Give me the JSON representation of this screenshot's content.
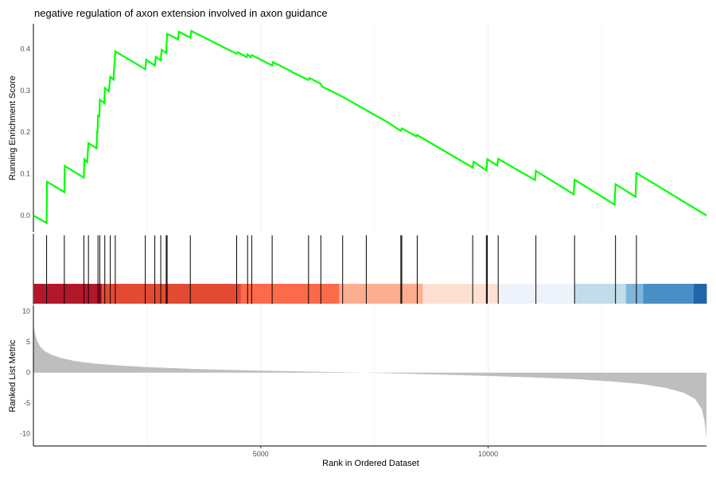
{
  "chart_data": [
    {
      "type": "line",
      "title": "negative regulation of axon extension involved in axon guidance",
      "ylabel": "Running Enrichment Score",
      "xlim": [
        0,
        14800
      ],
      "ylim": [
        -0.04,
        0.46
      ],
      "yticks": [
        "0.0",
        "0.1",
        "0.2",
        "0.3",
        "0.4"
      ],
      "ytick_values": [
        0.0,
        0.1,
        0.2,
        0.3,
        0.4
      ],
      "grid": true,
      "color": "#00ff00",
      "points": [
        [
          0,
          0.0
        ],
        [
          290,
          -0.018
        ],
        [
          300,
          0.081
        ],
        [
          680,
          0.056
        ],
        [
          690,
          0.119
        ],
        [
          1110,
          0.091
        ],
        [
          1120,
          0.135
        ],
        [
          1180,
          0.128
        ],
        [
          1210,
          0.174
        ],
        [
          1390,
          0.161
        ],
        [
          1400,
          0.203
        ],
        [
          1410,
          0.199
        ],
        [
          1420,
          0.24
        ],
        [
          1450,
          0.238
        ],
        [
          1460,
          0.278
        ],
        [
          1560,
          0.27
        ],
        [
          1570,
          0.306
        ],
        [
          1660,
          0.298
        ],
        [
          1690,
          0.333
        ],
        [
          1760,
          0.326
        ],
        [
          1800,
          0.394
        ],
        [
          2460,
          0.351
        ],
        [
          2480,
          0.374
        ],
        [
          2670,
          0.36
        ],
        [
          2690,
          0.381
        ],
        [
          2800,
          0.372
        ],
        [
          2820,
          0.398
        ],
        [
          2920,
          0.39
        ],
        [
          2940,
          0.436
        ],
        [
          3180,
          0.423
        ],
        [
          3200,
          0.441
        ],
        [
          3450,
          0.427
        ],
        [
          3470,
          0.443
        ],
        [
          4470,
          0.388
        ],
        [
          4490,
          0.392
        ],
        [
          4690,
          0.38
        ],
        [
          4710,
          0.387
        ],
        [
          4780,
          0.38
        ],
        [
          4800,
          0.385
        ],
        [
          5250,
          0.36
        ],
        [
          5270,
          0.368
        ],
        [
          5670,
          0.346
        ],
        [
          5690,
          0.344
        ],
        [
          6050,
          0.325
        ],
        [
          6070,
          0.33
        ],
        [
          6320,
          0.316
        ],
        [
          6340,
          0.31
        ],
        [
          6800,
          0.285
        ],
        [
          7800,
          0.223
        ],
        [
          8080,
          0.203
        ],
        [
          8100,
          0.209
        ],
        [
          8420,
          0.19
        ],
        [
          8440,
          0.193
        ],
        [
          9660,
          0.115
        ],
        [
          9680,
          0.129
        ],
        [
          9960,
          0.108
        ],
        [
          9980,
          0.135
        ],
        [
          10200,
          0.12
        ],
        [
          10220,
          0.136
        ],
        [
          11030,
          0.085
        ],
        [
          11050,
          0.107
        ],
        [
          11880,
          0.051
        ],
        [
          11900,
          0.086
        ],
        [
          12780,
          0.026
        ],
        [
          12800,
          0.075
        ],
        [
          13240,
          0.045
        ],
        [
          13260,
          0.102
        ],
        [
          14800,
          0.0
        ]
      ]
    },
    {
      "type": "heatmap",
      "hits": [
        290,
        680,
        1110,
        1210,
        1420,
        1460,
        1570,
        1690,
        1800,
        2460,
        2670,
        2800,
        2920,
        2940,
        3450,
        4470,
        4710,
        4800,
        5250,
        6050,
        6320,
        6800,
        7320,
        8080,
        8100,
        8440,
        9660,
        9960,
        9980,
        10220,
        11050,
        11900,
        12800,
        13260
      ],
      "color_bands": [
        {
          "from": 0,
          "to": 1500,
          "color": "#b2182b"
        },
        {
          "from": 1500,
          "to": 4560,
          "color": "#e34a33"
        },
        {
          "from": 4560,
          "to": 6720,
          "color": "#fb6a4a"
        },
        {
          "from": 6720,
          "to": 8560,
          "color": "#fcae91"
        },
        {
          "from": 8560,
          "to": 10200,
          "color": "#fee0d2"
        },
        {
          "from": 10200,
          "to": 11900,
          "color": "#eef3fb"
        },
        {
          "from": 11900,
          "to": 13030,
          "color": "#c3dcea"
        },
        {
          "from": 13030,
          "to": 13410,
          "color": "#7fb5dc"
        },
        {
          "from": 13410,
          "to": 14520,
          "color": "#4a8ec6"
        },
        {
          "from": 14520,
          "to": 14800,
          "color": "#2266a9"
        }
      ]
    },
    {
      "type": "area",
      "xlabel": "Rank in Ordered Dataset",
      "ylabel": "Ranked List Metric",
      "xticks": [
        "5000",
        "10000"
      ],
      "xtick_values": [
        5000,
        10000
      ],
      "yticks": [
        "10",
        "5",
        "0",
        "-5",
        "-10"
      ],
      "ytick_values": [
        10,
        5,
        0,
        -5,
        -10
      ],
      "ylim": [
        -12,
        11
      ],
      "color": "#bebebe",
      "points": [
        [
          0,
          8.0
        ],
        [
          30,
          6.5
        ],
        [
          80,
          5.2
        ],
        [
          150,
          4.2
        ],
        [
          250,
          3.5
        ],
        [
          400,
          2.9
        ],
        [
          600,
          2.4
        ],
        [
          900,
          1.9
        ],
        [
          1300,
          1.5
        ],
        [
          1800,
          1.2
        ],
        [
          2500,
          0.9
        ],
        [
          3500,
          0.6
        ],
        [
          4500,
          0.4
        ],
        [
          5500,
          0.25
        ],
        [
          6500,
          0.1
        ],
        [
          7300,
          0.0
        ],
        [
          8000,
          -0.15
        ],
        [
          9000,
          -0.35
        ],
        [
          10000,
          -0.55
        ],
        [
          11000,
          -0.8
        ],
        [
          12000,
          -1.1
        ],
        [
          12800,
          -1.5
        ],
        [
          13400,
          -1.9
        ],
        [
          13900,
          -2.5
        ],
        [
          14300,
          -3.3
        ],
        [
          14550,
          -4.3
        ],
        [
          14700,
          -6.0
        ],
        [
          14760,
          -8.0
        ],
        [
          14800,
          -10.8
        ]
      ]
    }
  ]
}
